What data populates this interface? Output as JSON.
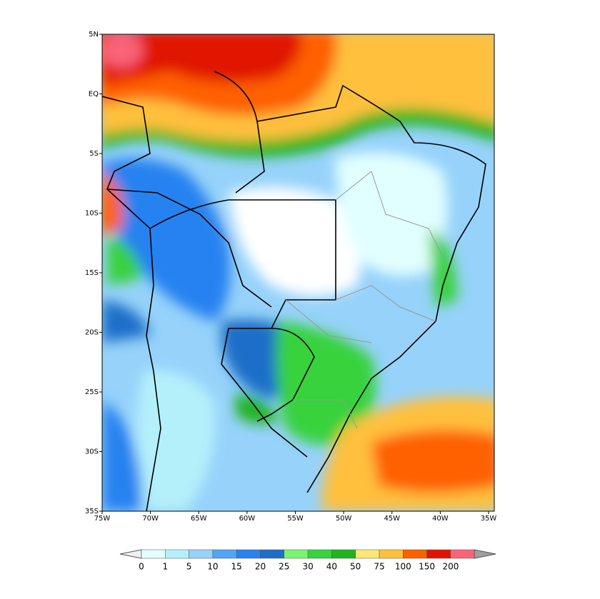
{
  "map": {
    "lat_labels": [
      "5N",
      "EQ",
      "5S",
      "10S",
      "15S",
      "20S",
      "25S",
      "30S",
      "35S"
    ],
    "lon_labels": [
      "75W",
      "70W",
      "65W",
      "60W",
      "55W",
      "50W",
      "45W",
      "40W",
      "35W"
    ]
  },
  "legend": {
    "labels": [
      "0",
      "1",
      "5",
      "10",
      "15",
      "20",
      "25",
      "30",
      "40",
      "50",
      "75",
      "100",
      "150",
      "200"
    ],
    "colors": [
      "#f0f0f0",
      "#e1ffff",
      "#b4f0fa",
      "#96d2fa",
      "#50a5f5",
      "#2882f0",
      "#1e6ec8",
      "#78f573",
      "#37d23c",
      "#1eb41e",
      "#ffe878",
      "#ffc03c",
      "#ff6000",
      "#e11400",
      "#fa6478",
      "#a0a0a0"
    ]
  }
}
